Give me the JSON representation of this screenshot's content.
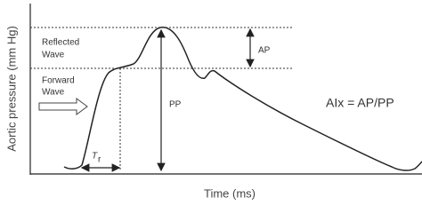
{
  "axes": {
    "y_title": "Aortic pressure (mm Hg)",
    "x_title": "Time (ms)"
  },
  "labels": {
    "reflected": [
      "Reflected",
      "Wave"
    ],
    "forward": [
      "Forward",
      "Wave"
    ],
    "ap": "AP",
    "pp": "PP",
    "tr": {
      "main": "T",
      "sub": "r"
    },
    "formula": "AIx = AP/PP"
  }
}
